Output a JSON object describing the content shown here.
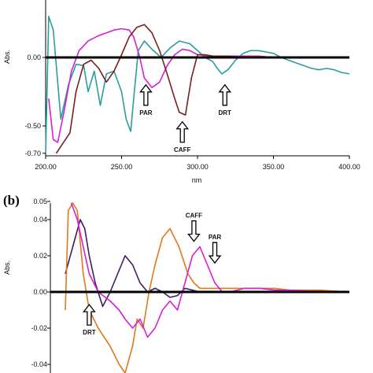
{
  "chart_data": [
    {
      "type": "line",
      "panel_label": "",
      "xlabel": "nm",
      "ylabel": "Abs.",
      "xlim": [
        200,
        400
      ],
      "ylim": [
        -0.7,
        0.3
      ],
      "x_ticks": [
        200,
        250,
        300,
        350,
        400
      ],
      "x_tick_labels": [
        "200.00",
        "250.00",
        "300.00",
        "350.00",
        "400.00"
      ],
      "y_ticks": [
        0,
        -0.5,
        -0.7
      ],
      "y_tick_labels": [
        "0.00",
        "-0.50",
        "-0.70"
      ],
      "grid": false,
      "colors": {
        "teal": "#2a9d9d",
        "magenta": "#d61fd6",
        "maroon": "#7a1f1f",
        "baseline": "#000000"
      },
      "series": [
        {
          "color": "teal",
          "x": [
            200,
            202,
            205,
            210,
            215,
            220,
            225,
            228,
            232,
            236,
            240,
            245,
            250,
            253,
            256,
            258,
            261,
            265,
            270,
            276,
            282,
            288,
            295,
            300,
            305,
            310,
            313,
            316,
            320,
            325,
            330,
            335,
            340,
            345,
            350,
            355,
            360,
            365,
            370,
            375,
            380,
            385,
            390,
            395,
            400
          ],
          "y": [
            -0.7,
            0.3,
            0.2,
            -0.45,
            -0.2,
            -0.05,
            -0.06,
            -0.25,
            -0.1,
            -0.35,
            -0.12,
            -0.1,
            -0.25,
            -0.45,
            -0.54,
            -0.3,
            0.05,
            0.12,
            0.06,
            0.0,
            0.07,
            0.12,
            0.1,
            0.05,
            0.0,
            -0.03,
            -0.08,
            -0.12,
            -0.09,
            -0.02,
            0.03,
            0.05,
            0.05,
            0.04,
            0.03,
            0.0,
            -0.02,
            -0.04,
            -0.06,
            -0.08,
            -0.09,
            -0.08,
            -0.09,
            -0.11,
            -0.12
          ]
        },
        {
          "color": "magenta",
          "x": [
            202,
            205,
            208,
            212,
            217,
            222,
            228,
            235,
            240,
            245,
            250,
            255,
            258,
            262,
            265,
            270,
            275,
            280,
            285,
            290,
            295,
            300,
            310,
            320,
            330,
            340,
            350,
            360,
            370,
            380,
            390,
            400
          ],
          "y": [
            -0.3,
            -0.6,
            -0.62,
            -0.4,
            -0.1,
            0.05,
            0.12,
            0.16,
            0.18,
            0.2,
            0.21,
            0.2,
            0.15,
            0.0,
            -0.15,
            -0.22,
            -0.18,
            -0.06,
            0.02,
            0.06,
            0.05,
            0.02,
            0.01,
            0.01,
            0.01,
            0.01,
            0.0,
            0.0,
            0.0,
            0.0,
            0.0,
            0.0
          ]
        },
        {
          "color": "maroon",
          "x": [
            207,
            210,
            213,
            216,
            220,
            225,
            230,
            235,
            240,
            245,
            250,
            255,
            260,
            265,
            270,
            275,
            280,
            285,
            288,
            292,
            296,
            300,
            305,
            310,
            320,
            330,
            340,
            350,
            360,
            380,
            400
          ],
          "y": [
            -0.7,
            -0.65,
            -0.6,
            -0.55,
            -0.25,
            -0.05,
            -0.02,
            -0.08,
            -0.18,
            -0.1,
            0.02,
            0.15,
            0.22,
            0.24,
            0.18,
            0.05,
            -0.12,
            -0.3,
            -0.4,
            -0.42,
            -0.15,
            0.02,
            0.02,
            0.01,
            0.01,
            0.0,
            0.0,
            0.0,
            0.0,
            0.0,
            0.0
          ]
        }
      ],
      "annotations": [
        {
          "text": "PAR",
          "x": 266,
          "y_tip": -0.2,
          "y_text": -0.5
        },
        {
          "text": "CAFF",
          "x": 290,
          "y_tip": -0.47,
          "y_text": -0.68
        },
        {
          "text": "DRT",
          "x": 318,
          "y_tip": -0.2,
          "y_text": -0.44
        }
      ]
    },
    {
      "type": "line",
      "panel_label": "(b)",
      "xlabel": "",
      "ylabel": "Abs.",
      "xlim": [
        200,
        400
      ],
      "ylim": [
        -0.045,
        0.05
      ],
      "y_ticks": [
        0.05,
        0.04,
        0.02,
        0.0,
        -0.02,
        -0.04
      ],
      "y_tick_labels": [
        "0.05",
        "0.04",
        "0.02",
        "0.00",
        "-0.02",
        "-0.04"
      ],
      "grid": false,
      "colors": {
        "purple": "#3f1a66",
        "magenta": "#d61fd6",
        "orange": "#e0781e",
        "baseline": "#000000"
      },
      "series": [
        {
          "color": "purple",
          "x": [
            210,
            215,
            220,
            223,
            226,
            230,
            235,
            240,
            245,
            250,
            255,
            260,
            265,
            270,
            275,
            280,
            285,
            290,
            295,
            300,
            310,
            320,
            330,
            340,
            350,
            360,
            380,
            400
          ],
          "y": [
            0.01,
            0.025,
            0.04,
            0.035,
            0.02,
            0.005,
            -0.008,
            0.0,
            0.01,
            0.02,
            0.015,
            0.005,
            0.0,
            0.002,
            0.0,
            -0.003,
            -0.002,
            0.002,
            0.001,
            0.0,
            0.0,
            0.0,
            0.0,
            0.0,
            0.0,
            0.0,
            0.0,
            0.0
          ]
        },
        {
          "color": "orange",
          "x": [
            210,
            212,
            215,
            218,
            222,
            226,
            232,
            240,
            246,
            250,
            255,
            258,
            262,
            266,
            270,
            275,
            280,
            286,
            292,
            296,
            300,
            310,
            320,
            330,
            340,
            350,
            360,
            380,
            400
          ],
          "y": [
            -0.01,
            0.045,
            0.05,
            0.045,
            0.01,
            -0.01,
            -0.02,
            -0.03,
            -0.04,
            -0.045,
            -0.03,
            -0.015,
            -0.02,
            0.0,
            0.015,
            0.03,
            0.035,
            0.025,
            0.01,
            0.005,
            0.002,
            0.002,
            0.002,
            0.002,
            0.002,
            0.002,
            0.001,
            0.001,
            0.0
          ]
        },
        {
          "color": "magenta",
          "x": [
            214,
            218,
            222,
            226,
            232,
            240,
            246,
            250,
            255,
            260,
            265,
            270,
            275,
            280,
            285,
            290,
            295,
            300,
            305,
            310,
            315,
            320,
            330,
            340,
            350,
            360,
            380,
            400
          ],
          "y": [
            0.05,
            0.04,
            0.025,
            0.01,
            0.0,
            -0.005,
            -0.01,
            -0.015,
            -0.02,
            -0.015,
            -0.025,
            -0.02,
            -0.01,
            -0.005,
            -0.01,
            0.005,
            0.02,
            0.025,
            0.015,
            0.005,
            0.0,
            0.0,
            0.002,
            0.002,
            0.001,
            0.001,
            0.0,
            0.0
          ]
        }
      ],
      "annotations": [
        {
          "text": "CAFF",
          "x": 296,
          "y_tip": 0.028,
          "y_text": 0.047
        },
        {
          "text": "PAR",
          "x": 310,
          "y_tip": 0.016,
          "y_text": 0.035
        },
        {
          "text": "DRT",
          "x": 226,
          "y_tip": -0.007,
          "y_text": -0.031
        }
      ]
    }
  ]
}
